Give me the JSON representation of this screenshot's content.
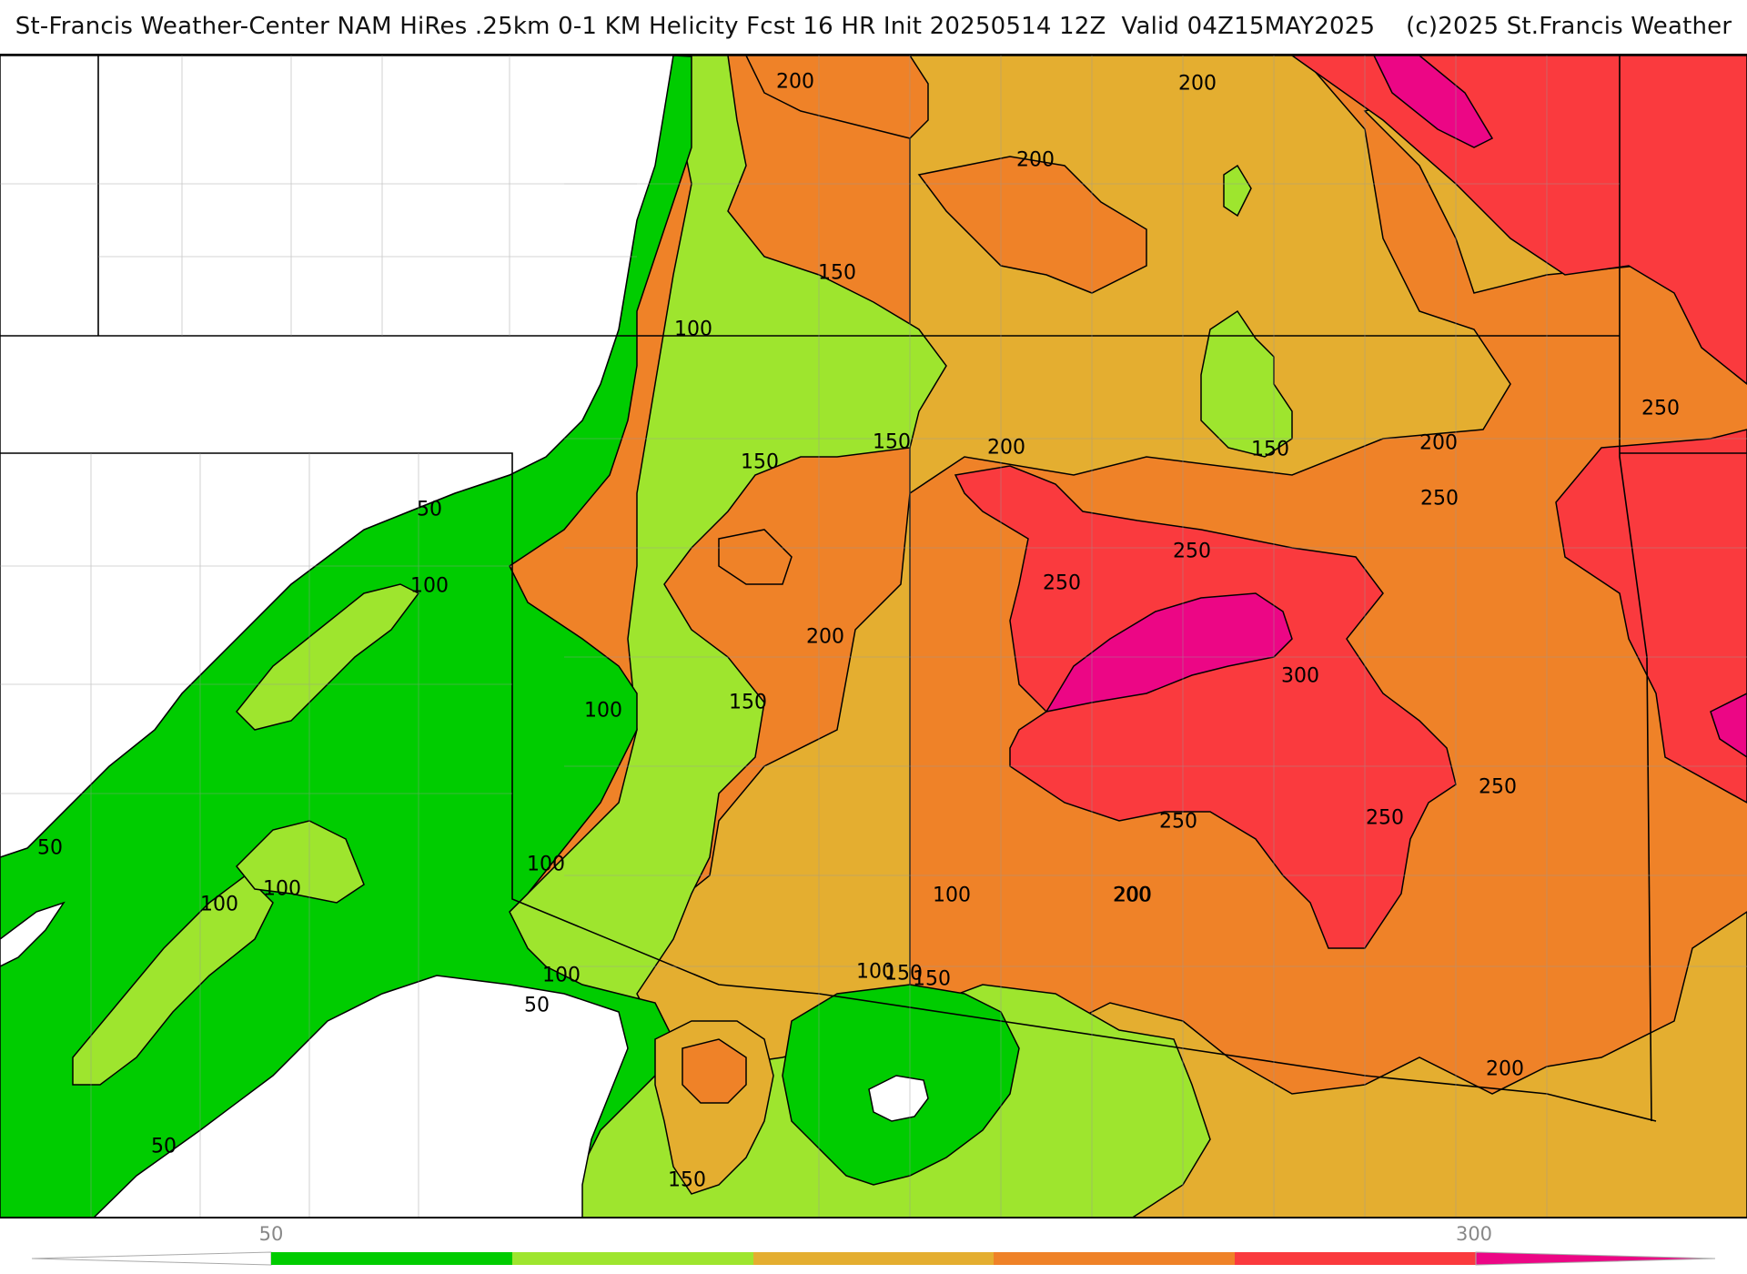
{
  "header": {
    "title": "St-Francis Weather-Center NAM HiRes .25km 0-1 KM Helicity Fcst 16 HR Init 20250514 12Z  Valid 04Z15MAY2025    (c)2025 St.Francis Weather"
  },
  "legend": {
    "tick_labels": [
      "50",
      "300"
    ],
    "levels": [
      50,
      100,
      150,
      200,
      250,
      300
    ],
    "colors": {
      "below_50": "#ffffff",
      "50_100": "#00cc00",
      "100_150": "#9ee52e",
      "150_200": "#e4ae30",
      "200_250": "#ef8228",
      "250_300": "#fa3a3e",
      "above_300": "#ec0685"
    }
  },
  "map": {
    "field": "0-1 KM Helicity",
    "contour_labels": [
      "200",
      "200",
      "200",
      "150",
      "100",
      "50",
      "100",
      "100",
      "150",
      "150",
      "200",
      "150",
      "250",
      "250",
      "200",
      "150",
      "250",
      "200",
      "300",
      "100",
      "100",
      "50",
      "100",
      "100",
      "100",
      "150",
      "150",
      "250",
      "250",
      "200",
      "250",
      "200",
      "250",
      "50",
      "150",
      "50",
      "100",
      "200"
    ]
  }
}
